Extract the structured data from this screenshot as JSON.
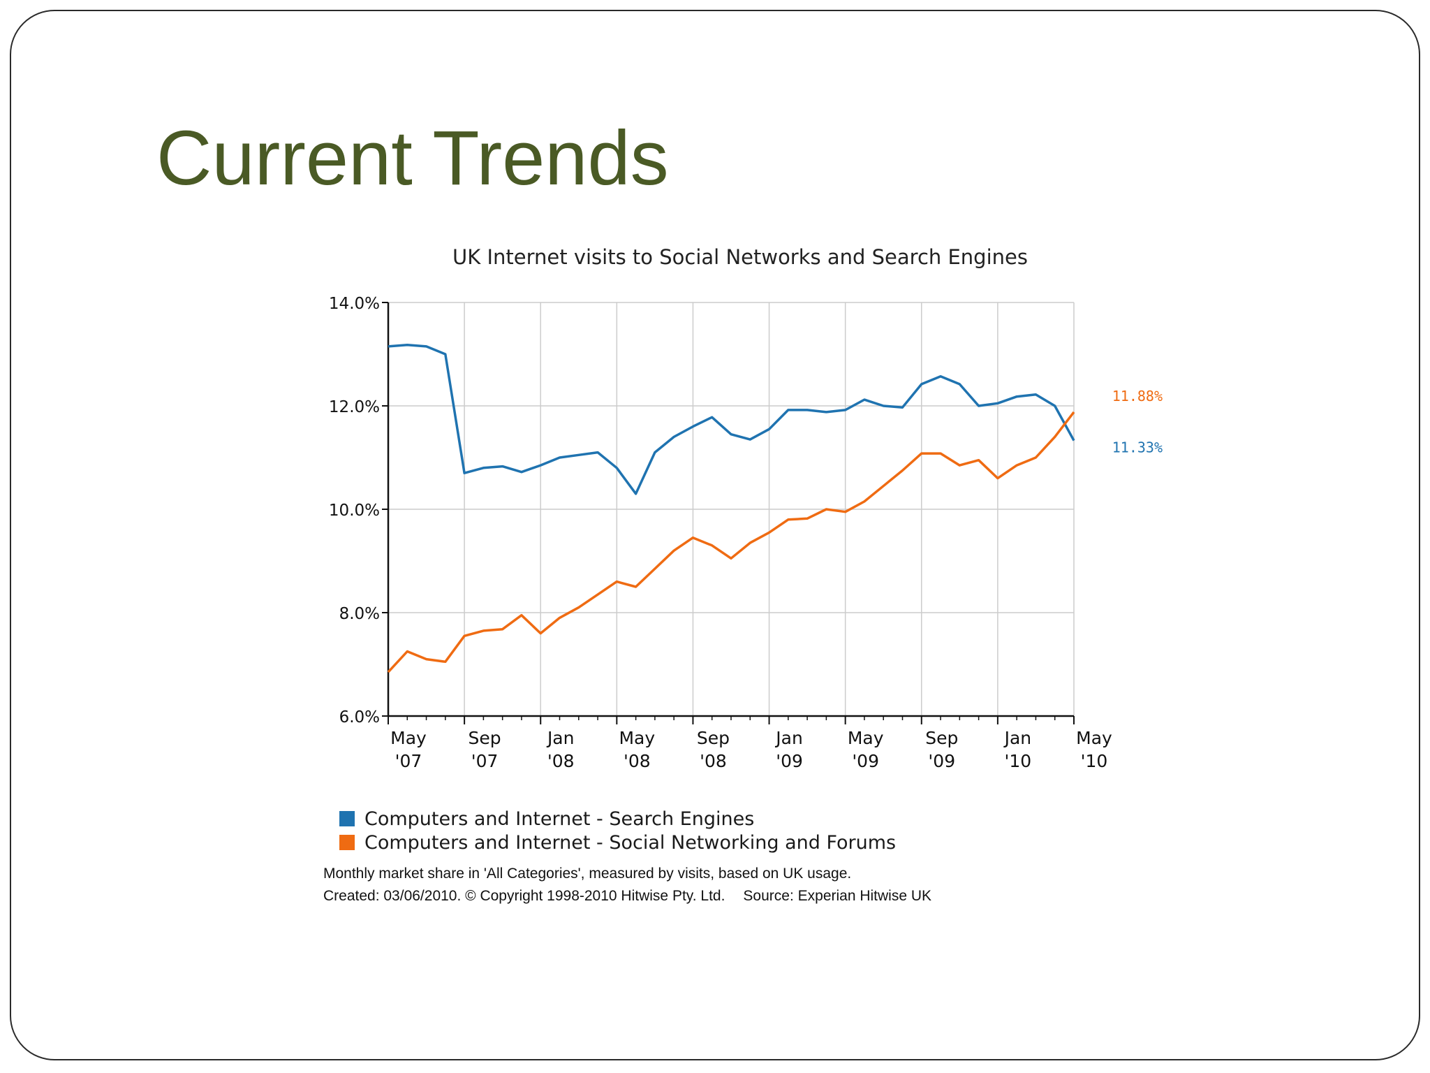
{
  "slide": {
    "title": "Current Trends"
  },
  "chart_data": {
    "type": "line",
    "title": "UK Internet visits to Social Networks and Search Engines",
    "xlabel": "",
    "ylabel": "",
    "x": [
      "2007-05",
      "2007-06",
      "2007-07",
      "2007-08",
      "2007-09",
      "2007-10",
      "2007-11",
      "2007-12",
      "2008-01",
      "2008-02",
      "2008-03",
      "2008-04",
      "2008-05",
      "2008-06",
      "2008-07",
      "2008-08",
      "2008-09",
      "2008-10",
      "2008-11",
      "2008-12",
      "2009-01",
      "2009-02",
      "2009-03",
      "2009-04",
      "2009-05",
      "2009-06",
      "2009-07",
      "2009-08",
      "2009-09",
      "2009-10",
      "2009-11",
      "2009-12",
      "2010-01",
      "2010-02",
      "2010-03",
      "2010-04",
      "2010-05"
    ],
    "x_tick_labels": [
      {
        "x": "2007-05",
        "line1": "May",
        "line2": "'07"
      },
      {
        "x": "2007-09",
        "line1": "Sep",
        "line2": "'07"
      },
      {
        "x": "2008-01",
        "line1": "Jan",
        "line2": "'08"
      },
      {
        "x": "2008-05",
        "line1": "May",
        "line2": "'08"
      },
      {
        "x": "2008-09",
        "line1": "Sep",
        "line2": "'08"
      },
      {
        "x": "2009-01",
        "line1": "Jan",
        "line2": "'09"
      },
      {
        "x": "2009-05",
        "line1": "May",
        "line2": "'09"
      },
      {
        "x": "2009-09",
        "line1": "Sep",
        "line2": "'09"
      },
      {
        "x": "2010-01",
        "line1": "Jan",
        "line2": "'10"
      },
      {
        "x": "2010-05",
        "line1": "May",
        "line2": "'10"
      }
    ],
    "y_ticks": [
      6,
      8,
      10,
      12,
      14
    ],
    "y_tick_labels": [
      "6.0%",
      "8.0%",
      "10.0%",
      "12.0%",
      "14.0%"
    ],
    "ylim": [
      6,
      14
    ],
    "grid": true,
    "legend_position": "bottom-left",
    "series": [
      {
        "name": "Computers and Internet - Search Engines",
        "color": "#1f73b0",
        "values": [
          13.15,
          13.18,
          13.15,
          13.0,
          10.7,
          10.8,
          10.83,
          10.72,
          10.85,
          11.0,
          11.05,
          11.1,
          10.8,
          10.3,
          11.1,
          11.4,
          11.6,
          11.78,
          11.45,
          11.35,
          11.55,
          11.92,
          11.92,
          11.88,
          11.92,
          12.12,
          12.0,
          11.97,
          12.42,
          12.57,
          12.42,
          12.0,
          12.05,
          12.18,
          12.22,
          12.0,
          11.33
        ],
        "end_label": "11.33%"
      },
      {
        "name": "Computers and Internet - Social Networking and Forums",
        "color": "#ef6b12",
        "values": [
          6.85,
          7.25,
          7.1,
          7.05,
          7.55,
          7.65,
          7.68,
          7.95,
          7.6,
          7.9,
          8.1,
          8.35,
          8.6,
          8.5,
          8.85,
          9.2,
          9.45,
          9.3,
          9.05,
          9.35,
          9.55,
          9.8,
          9.82,
          10.0,
          9.95,
          10.15,
          10.45,
          10.75,
          11.08,
          11.08,
          10.85,
          10.95,
          10.6,
          10.85,
          11.0,
          11.4,
          11.88
        ],
        "end_label": "11.88%"
      }
    ]
  },
  "notes": {
    "line1": "Monthly market share in 'All Categories', measured by visits, based on UK usage.",
    "created": "Created: 03/06/2010. © Copyright 1998-2010 Hitwise Pty. Ltd.",
    "source": "Source: Experian Hitwise UK"
  }
}
